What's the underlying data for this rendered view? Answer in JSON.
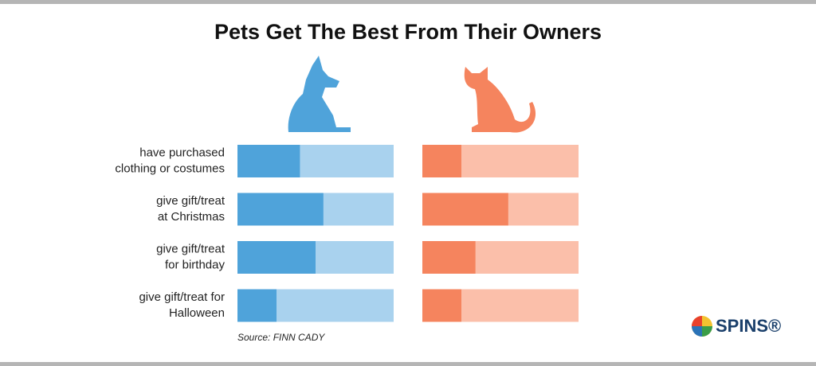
{
  "chart_data": {
    "type": "bar",
    "orientation": "horizontal",
    "title": "Pets Get The Best From Their Owners",
    "categories": [
      "have purchased\nclothing or costumes",
      "give gift/treat\nat Christmas",
      "give gift/treat\nfor birthday",
      "give gift/treat for\nHalloween"
    ],
    "series": [
      {
        "color": "#4fa3da",
        "track_color": "#a9d2ee",
        "values": [
          40,
          55,
          50,
          25
        ]
      },
      {
        "color": "#f5845e",
        "track_color": "#fbbfaa",
        "values": [
          25,
          55,
          34,
          25
        ]
      }
    ],
    "xlim": [
      0,
      100
    ],
    "source": "Source: FINN CADY",
    "logo": "SPINS®"
  }
}
